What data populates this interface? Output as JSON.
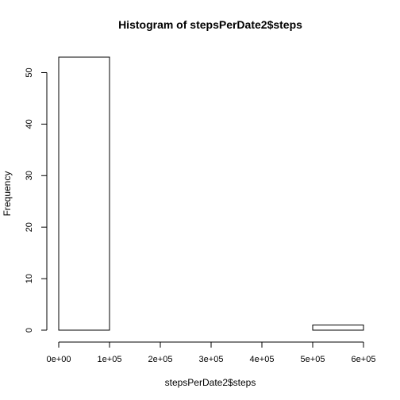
{
  "chart_data": {
    "type": "bar",
    "title": "Histogram of stepsPerDate2$steps",
    "xlabel": "stepsPerDate2$steps",
    "ylabel": "Frequency",
    "bins": [
      {
        "from": 0,
        "to": 100000,
        "count": 53
      },
      {
        "from": 100000,
        "to": 200000,
        "count": 0
      },
      {
        "from": 200000,
        "to": 300000,
        "count": 0
      },
      {
        "from": 300000,
        "to": 400000,
        "count": 0
      },
      {
        "from": 400000,
        "to": 500000,
        "count": 0
      },
      {
        "from": 500000,
        "to": 600000,
        "count": 1
      }
    ],
    "xlim": [
      0,
      600000
    ],
    "ylim": [
      0,
      53
    ],
    "x_ticks": [
      {
        "value": 0,
        "label": "0e+00"
      },
      {
        "value": 100000,
        "label": "1e+05"
      },
      {
        "value": 200000,
        "label": "2e+05"
      },
      {
        "value": 300000,
        "label": "3e+05"
      },
      {
        "value": 400000,
        "label": "4e+05"
      },
      {
        "value": 500000,
        "label": "5e+05"
      },
      {
        "value": 600000,
        "label": "6e+05"
      }
    ],
    "y_ticks": [
      {
        "value": 0,
        "label": "0"
      },
      {
        "value": 10,
        "label": "10"
      },
      {
        "value": 20,
        "label": "20"
      },
      {
        "value": 30,
        "label": "30"
      },
      {
        "value": 40,
        "label": "40"
      },
      {
        "value": 50,
        "label": "50"
      }
    ],
    "grid": false,
    "colors": {
      "bar_fill": "#ffffff",
      "bar_stroke": "#000000"
    }
  }
}
